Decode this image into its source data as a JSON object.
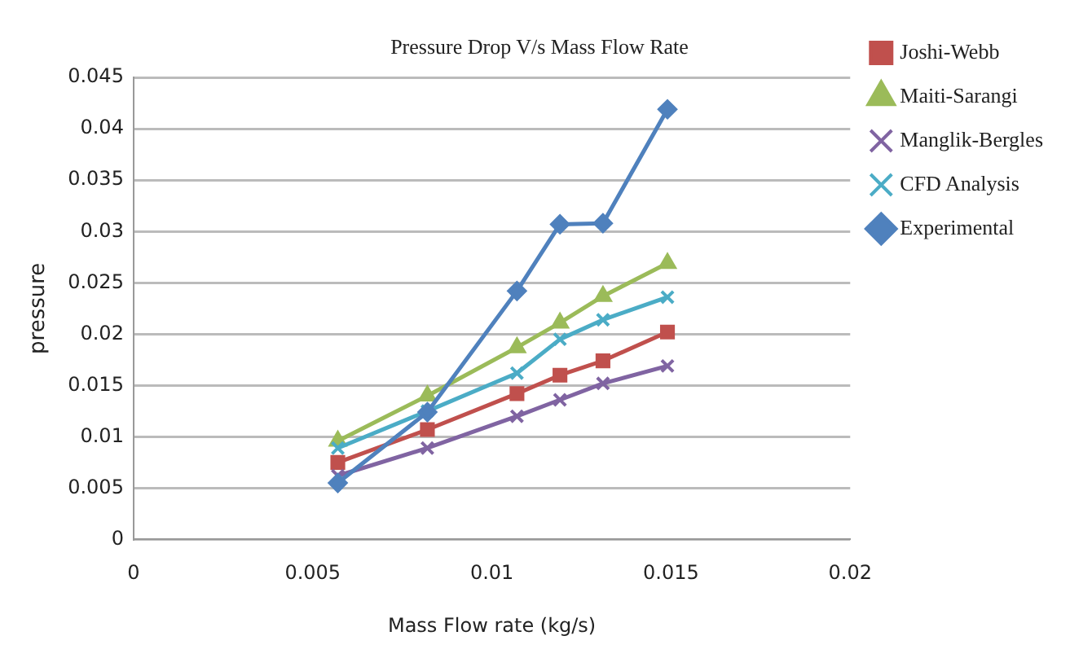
{
  "chart_data": {
    "type": "line",
    "title": "Pressure Drop V/s Mass Flow Rate",
    "xlabel": "Mass Flow rate (kg/s)",
    "ylabel": "pressure",
    "x": [
      0.0057,
      0.0082,
      0.0107,
      0.0119,
      0.0131,
      0.0149
    ],
    "series": [
      {
        "name": "Joshi-Webb",
        "color": "#c0504d",
        "marker": "square",
        "values": [
          0.0075,
          0.0107,
          0.0142,
          0.016,
          0.0174,
          0.0202
        ]
      },
      {
        "name": "Maiti-Sarangi",
        "color": "#9bbb59",
        "marker": "triangle",
        "values": [
          0.0096,
          0.014,
          0.0187,
          0.0211,
          0.0237,
          0.0269
        ]
      },
      {
        "name": "Manglik-Bergles",
        "color": "#8064a2",
        "marker": "cross",
        "values": [
          0.0062,
          0.0089,
          0.012,
          0.0136,
          0.0152,
          0.0169
        ]
      },
      {
        "name": "CFD Analysis",
        "color": "#4bacc6",
        "marker": "cross",
        "values": [
          0.0089,
          0.0125,
          0.0162,
          0.0195,
          0.0214,
          0.0236
        ]
      },
      {
        "name": "Experimental",
        "color": "#4f81bd",
        "marker": "diamond",
        "values": [
          0.0055,
          0.0124,
          0.0242,
          0.0307,
          0.0308,
          0.0419
        ]
      }
    ],
    "xlim": [
      0,
      0.02
    ],
    "xticks": [
      0,
      0.005,
      0.01,
      0.015,
      0.02
    ],
    "ylim": [
      0,
      0.045
    ],
    "yticks": [
      0,
      0.005,
      0.01,
      0.015,
      0.02,
      0.025,
      0.03,
      0.035,
      0.04,
      0.045
    ],
    "grid": "y",
    "legend": "right"
  }
}
